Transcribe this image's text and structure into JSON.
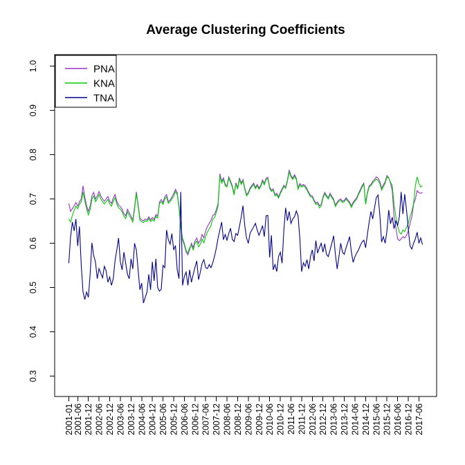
{
  "title": "Average Clustering Coefficients",
  "chart_data": {
    "type": "line",
    "title": "Average Clustering Coefficients",
    "xlabel": "",
    "ylabel": "",
    "grid": false,
    "x_axis": {
      "start": "2001-01",
      "end": "2017-08",
      "frequency": "monthly",
      "n_points": 200,
      "tick_labels": [
        "2001-01",
        "2001-06",
        "2001-12",
        "2002-06",
        "2002-12",
        "2003-06",
        "2003-12",
        "2004-06",
        "2004-12",
        "2005-06",
        "2005-12",
        "2006-06",
        "2006-12",
        "2007-06",
        "2007-12",
        "2008-06",
        "2008-12",
        "2009-06",
        "2009-12",
        "2010-06",
        "2010-12",
        "2011-06",
        "2011-12",
        "2012-06",
        "2012-12",
        "2013-06",
        "2013-12",
        "2014-06",
        "2014-12",
        "2015-06",
        "2015-12",
        "2016-06",
        "2016-12",
        "2017-06"
      ],
      "tick_month_indices": [
        0,
        5,
        11,
        17,
        23,
        29,
        35,
        41,
        47,
        53,
        59,
        65,
        71,
        77,
        83,
        89,
        95,
        101,
        107,
        113,
        119,
        125,
        131,
        137,
        143,
        149,
        155,
        161,
        167,
        173,
        179,
        185,
        191,
        197
      ]
    },
    "y_axis": {
      "tick_labels": [
        "0.3",
        "0.4",
        "0.5",
        "0.6",
        "0.7",
        "0.8",
        "0.9",
        "1.0"
      ],
      "tick_values": [
        0.3,
        0.4,
        0.5,
        0.6,
        0.7,
        0.8,
        0.9,
        1.0
      ],
      "value_range": [
        0.254,
        1.026
      ]
    },
    "legend": {
      "position": "topleft",
      "entries": [
        {
          "label": "PNA",
          "color": "#9932CC"
        },
        {
          "label": "KNA",
          "color": "#00CD00"
        },
        {
          "label": "TNA",
          "color": "#00008B"
        }
      ]
    },
    "series": [
      {
        "name": "PNA",
        "color": "#9932CC",
        "values": [
          0.69,
          0.672,
          0.678,
          0.685,
          0.692,
          0.684,
          0.694,
          0.7,
          0.73,
          0.704,
          0.685,
          0.672,
          0.684,
          0.707,
          0.715,
          0.7,
          0.707,
          0.717,
          0.707,
          0.7,
          0.695,
          0.7,
          0.706,
          0.695,
          0.69,
          0.702,
          0.71,
          0.695,
          0.686,
          0.683,
          0.677,
          0.667,
          0.662,
          0.677,
          0.669,
          0.661,
          0.653,
          0.682,
          0.716,
          0.688,
          0.657,
          0.653,
          0.651,
          0.655,
          0.653,
          0.66,
          0.653,
          0.658,
          0.654,
          0.665,
          0.661,
          0.693,
          0.699,
          0.692,
          0.705,
          0.71,
          0.694,
          0.698,
          0.704,
          0.712,
          0.722,
          0.714,
          0.683,
          0.64,
          0.608,
          0.596,
          0.58,
          0.574,
          0.586,
          0.6,
          0.59,
          0.605,
          0.612,
          0.6,
          0.607,
          0.62,
          0.612,
          0.628,
          0.638,
          0.645,
          0.652,
          0.663,
          0.665,
          0.676,
          0.69,
          0.757,
          0.74,
          0.748,
          0.733,
          0.73,
          0.75,
          0.74,
          0.73,
          0.712,
          0.737,
          0.725,
          0.748,
          0.736,
          0.744,
          0.725,
          0.71,
          0.715,
          0.725,
          0.731,
          0.736,
          0.726,
          0.733,
          0.725,
          0.731,
          0.743,
          0.735,
          0.747,
          0.749,
          0.727,
          0.72,
          0.723,
          0.71,
          0.713,
          0.705,
          0.715,
          0.723,
          0.731,
          0.727,
          0.743,
          0.766,
          0.753,
          0.747,
          0.755,
          0.747,
          0.725,
          0.735,
          0.73,
          0.733,
          0.73,
          0.723,
          0.715,
          0.708,
          0.707,
          0.698,
          0.691,
          0.693,
          0.685,
          0.688,
          0.705,
          0.715,
          0.708,
          0.703,
          0.713,
          0.706,
          0.7,
          0.686,
          0.693,
          0.698,
          0.7,
          0.695,
          0.697,
          0.703,
          0.698,
          0.693,
          0.684,
          0.693,
          0.698,
          0.703,
          0.713,
          0.721,
          0.73,
          0.736,
          0.691,
          0.715,
          0.73,
          0.733,
          0.74,
          0.744,
          0.75,
          0.747,
          0.74,
          0.724,
          0.732,
          0.739,
          0.753,
          0.748,
          0.736,
          0.719,
          0.66,
          0.636,
          0.61,
          0.606,
          0.61,
          0.615,
          0.612,
          0.618,
          0.628,
          0.644,
          0.66,
          0.688,
          0.7,
          0.719,
          0.714,
          0.713,
          0.715
        ]
      },
      {
        "name": "KNA",
        "color": "#00CD00",
        "values": [
          0.655,
          0.648,
          0.663,
          0.674,
          0.684,
          0.678,
          0.688,
          0.694,
          0.716,
          0.696,
          0.678,
          0.664,
          0.676,
          0.7,
          0.707,
          0.694,
          0.7,
          0.71,
          0.7,
          0.694,
          0.689,
          0.694,
          0.699,
          0.689,
          0.684,
          0.695,
          0.703,
          0.689,
          0.68,
          0.677,
          0.671,
          0.661,
          0.656,
          0.671,
          0.663,
          0.656,
          0.648,
          0.677,
          0.712,
          0.684,
          0.652,
          0.649,
          0.647,
          0.651,
          0.649,
          0.656,
          0.649,
          0.654,
          0.65,
          0.661,
          0.657,
          0.689,
          0.694,
          0.688,
          0.7,
          0.705,
          0.69,
          0.694,
          0.7,
          0.706,
          0.717,
          0.71,
          0.68,
          0.638,
          0.611,
          0.6,
          0.584,
          0.578,
          0.59,
          0.596,
          0.585,
          0.6,
          0.605,
          0.592,
          0.598,
          0.61,
          0.601,
          0.615,
          0.626,
          0.632,
          0.64,
          0.655,
          0.658,
          0.67,
          0.685,
          0.752,
          0.736,
          0.744,
          0.73,
          0.727,
          0.747,
          0.737,
          0.727,
          0.709,
          0.734,
          0.722,
          0.744,
          0.733,
          0.741,
          0.722,
          0.707,
          0.712,
          0.722,
          0.728,
          0.733,
          0.723,
          0.73,
          0.722,
          0.728,
          0.74,
          0.732,
          0.744,
          0.746,
          0.724,
          0.717,
          0.72,
          0.707,
          0.71,
          0.702,
          0.712,
          0.72,
          0.728,
          0.724,
          0.74,
          0.761,
          0.75,
          0.744,
          0.752,
          0.744,
          0.722,
          0.732,
          0.727,
          0.73,
          0.727,
          0.72,
          0.712,
          0.705,
          0.704,
          0.695,
          0.688,
          0.69,
          0.68,
          0.684,
          0.702,
          0.712,
          0.705,
          0.7,
          0.71,
          0.703,
          0.697,
          0.683,
          0.69,
          0.695,
          0.697,
          0.692,
          0.694,
          0.7,
          0.695,
          0.69,
          0.681,
          0.69,
          0.695,
          0.7,
          0.71,
          0.718,
          0.727,
          0.733,
          0.688,
          0.712,
          0.727,
          0.73,
          0.737,
          0.74,
          0.745,
          0.742,
          0.735,
          0.72,
          0.728,
          0.735,
          0.75,
          0.747,
          0.738,
          0.73,
          0.688,
          0.66,
          0.64,
          0.625,
          0.621,
          0.63,
          0.626,
          0.636,
          0.645,
          0.66,
          0.672,
          0.69,
          0.73,
          0.75,
          0.735,
          0.727,
          0.73
        ]
      },
      {
        "name": "TNA",
        "color": "#00008B",
        "values": [
          0.555,
          0.615,
          0.648,
          0.628,
          0.655,
          0.594,
          0.638,
          0.55,
          0.49,
          0.473,
          0.49,
          0.478,
          0.53,
          0.601,
          0.572,
          0.558,
          0.52,
          0.543,
          0.532,
          0.522,
          0.548,
          0.538,
          0.512,
          0.524,
          0.505,
          0.52,
          0.56,
          0.585,
          0.612,
          0.558,
          0.54,
          0.58,
          0.555,
          0.53,
          0.52,
          0.565,
          0.542,
          0.6,
          0.585,
          0.54,
          0.495,
          0.51,
          0.465,
          0.478,
          0.49,
          0.53,
          0.495,
          0.558,
          0.515,
          0.565,
          0.5,
          0.492,
          0.496,
          0.55,
          0.545,
          0.63,
          0.608,
          0.598,
          0.622,
          0.585,
          0.595,
          0.54,
          0.52,
          0.716,
          0.505,
          0.525,
          0.535,
          0.505,
          0.54,
          0.512,
          0.53,
          0.546,
          0.56,
          0.518,
          0.535,
          0.555,
          0.563,
          0.545,
          0.543,
          0.552,
          0.545,
          0.556,
          0.571,
          0.589,
          0.612,
          0.63,
          0.648,
          0.608,
          0.62,
          0.607,
          0.622,
          0.634,
          0.609,
          0.604,
          0.622,
          0.618,
          0.638,
          0.659,
          0.685,
          0.64,
          0.612,
          0.6,
          0.623,
          0.63,
          0.637,
          0.645,
          0.63,
          0.618,
          0.628,
          0.64,
          0.615,
          0.662,
          0.663,
          0.568,
          0.618,
          0.54,
          0.552,
          0.536,
          0.57,
          0.58,
          0.555,
          0.63,
          0.68,
          0.651,
          0.672,
          0.645,
          0.655,
          0.66,
          0.673,
          0.662,
          0.61,
          0.536,
          0.556,
          0.548,
          0.563,
          0.542,
          0.57,
          0.585,
          0.56,
          0.606,
          0.578,
          0.59,
          0.6,
          0.58,
          0.599,
          0.575,
          0.57,
          0.585,
          0.6,
          0.617,
          0.575,
          0.542,
          0.57,
          0.6,
          0.58,
          0.575,
          0.59,
          0.602,
          0.615,
          0.58,
          0.557,
          0.57,
          0.578,
          0.585,
          0.595,
          0.603,
          0.607,
          0.59,
          0.62,
          0.648,
          0.672,
          0.655,
          0.68,
          0.703,
          0.709,
          0.665,
          0.603,
          0.615,
          0.6,
          0.628,
          0.675,
          0.644,
          0.659,
          0.633,
          0.65,
          0.64,
          0.66,
          0.716,
          0.666,
          0.711,
          0.676,
          0.633,
          0.594,
          0.587,
          0.6,
          0.61,
          0.625,
          0.6,
          0.612,
          0.597
        ]
      }
    ]
  }
}
